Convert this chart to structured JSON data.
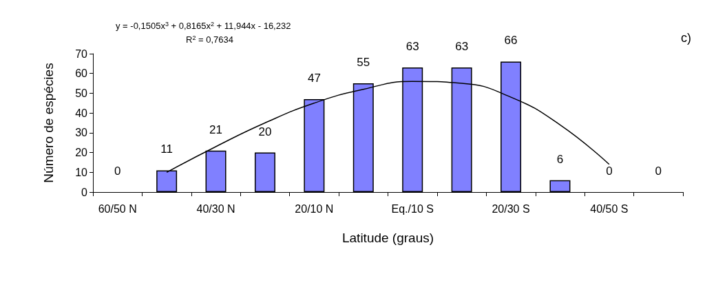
{
  "chart_data": {
    "type": "bar",
    "xlabel": "Latitude (graus)",
    "ylabel": "Número de espécies",
    "categories": [
      "60/50 N",
      null,
      "40/30 N",
      null,
      "20/10 N",
      null,
      "Eq./10 S",
      null,
      "20/30 S",
      null,
      "40/50 S",
      null
    ],
    "series": [
      {
        "color": "#8080ff",
        "values": [
          0,
          11,
          21,
          20,
          47,
          55,
          63,
          63,
          66,
          6,
          0,
          0
        ],
        "value_labels": [
          "0",
          "11",
          "21",
          "20",
          "47",
          "55",
          "63",
          "63",
          "66",
          "6",
          "0",
          "0"
        ]
      },
      {
        "type": "line",
        "color": "#000000",
        "values": [
          null,
          10,
          23,
          35,
          45,
          52,
          56,
          55,
          48,
          34,
          14,
          null
        ]
      }
    ],
    "ylim": [
      0,
      70
    ],
    "yticks": [
      0,
      10,
      20,
      30,
      40,
      50,
      60,
      70
    ],
    "grid": false,
    "marker": "none",
    "annotations": [
      "y = -0,1505x$^{3}$ + 0,8165x$^{2}$ + 11,944x - 16,232",
      "R$^{2}$ = 0,7634",
      "c)"
    ]
  }
}
